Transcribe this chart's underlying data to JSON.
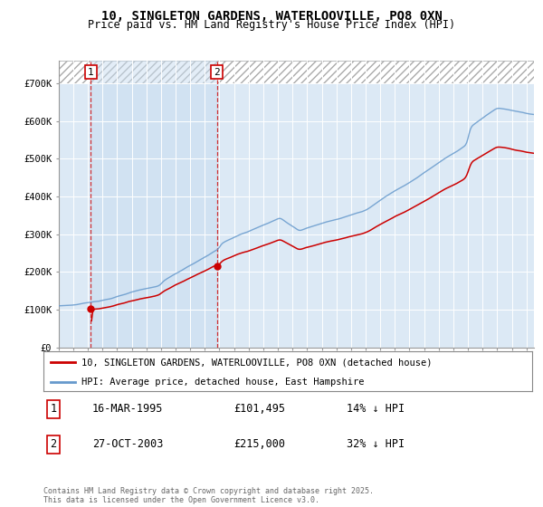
{
  "title": "10, SINGLETON GARDENS, WATERLOOVILLE, PO8 0XN",
  "subtitle": "Price paid vs. HM Land Registry's House Price Index (HPI)",
  "ylim": [
    0,
    800000
  ],
  "bg_color": "#dce9f5",
  "grid_color": "#ffffff",
  "red_line_color": "#cc0000",
  "blue_line_color": "#6699cc",
  "legend_red_label": "10, SINGLETON GARDENS, WATERLOOVILLE, PO8 0XN (detached house)",
  "legend_blue_label": "HPI: Average price, detached house, East Hampshire",
  "purchase1_date": "16-MAR-1995",
  "purchase1_price": 101495,
  "purchase1_year": 1995.21,
  "purchase2_date": "27-OCT-2003",
  "purchase2_price": 215000,
  "purchase2_year": 2003.82,
  "purchase1_pct": "14% ↓ HPI",
  "purchase2_pct": "32% ↓ HPI",
  "footer": "Contains HM Land Registry data © Crown copyright and database right 2025.\nThis data is licensed under the Open Government Licence v3.0.",
  "yticks": [
    0,
    100000,
    200000,
    300000,
    400000,
    500000,
    600000,
    700000
  ],
  "ytick_labels": [
    "£0",
    "£100K",
    "£200K",
    "£300K",
    "£400K",
    "£500K",
    "£600K",
    "£700K"
  ],
  "xmin": 1993.0,
  "xmax": 2025.5
}
